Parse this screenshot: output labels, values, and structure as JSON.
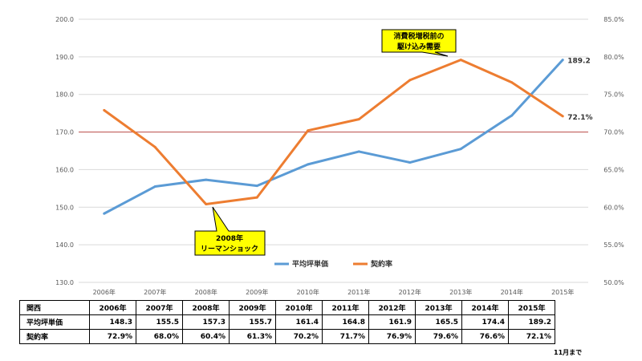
{
  "chart_data": {
    "type": "line",
    "categories": [
      "2006年",
      "2007年",
      "2008年",
      "2009年",
      "2010年",
      "2011年",
      "2012年",
      "2013年",
      "2014年",
      "2015年"
    ],
    "series": [
      {
        "name": "平均坪単価",
        "axis": "left",
        "color": "#5B9BD5",
        "values": [
          148.3,
          155.5,
          157.3,
          155.7,
          161.4,
          164.8,
          161.9,
          165.5,
          174.4,
          189.2
        ]
      },
      {
        "name": "契約率",
        "axis": "right",
        "color": "#ED7D31",
        "values": [
          72.9,
          68.0,
          60.4,
          61.3,
          70.2,
          71.7,
          76.9,
          79.6,
          76.6,
          72.1
        ]
      }
    ],
    "y_left": {
      "min": 130,
      "max": 200,
      "step": 10,
      "tick_labels": [
        "130.0",
        "140.0",
        "150.0",
        "160.0",
        "170.0",
        "180.0",
        "190.0",
        "200.0"
      ]
    },
    "y_right": {
      "min": 50,
      "max": 85,
      "step": 5,
      "tick_labels": [
        "50.0%",
        "55.0%",
        "60.0%",
        "65.0%",
        "70.0%",
        "75.0%",
        "80.0%",
        "85.0%"
      ]
    },
    "reference_line": {
      "axis": "right",
      "value": 70.0,
      "color": "#C0504D"
    },
    "end_labels": {
      "平均坪単価": "189.2",
      "契約率": "72.1%"
    },
    "grid": true,
    "legend_position": "bottom-center",
    "annotations": [
      {
        "text": [
          "消費税増税前の",
          "駆け込み需要"
        ],
        "points_to": "2013年"
      },
      {
        "text": [
          "2008年",
          "リーマンショック"
        ],
        "points_to": "2008年"
      }
    ]
  },
  "table": {
    "header_label": "関西",
    "years": [
      "2006年",
      "2007年",
      "2008年",
      "2009年",
      "2010年",
      "2011年",
      "2012年",
      "2013年",
      "2014年",
      "2015年"
    ],
    "rows": [
      {
        "label": "平均坪単価",
        "values": [
          "148.3",
          "155.5",
          "157.3",
          "155.7",
          "161.4",
          "164.8",
          "161.9",
          "165.5",
          "174.4",
          "189.2"
        ]
      },
      {
        "label": "契約率",
        "values": [
          "72.9%",
          "68.0%",
          "60.4%",
          "61.3%",
          "70.2%",
          "71.7%",
          "76.9%",
          "79.6%",
          "76.6%",
          "72.1%"
        ]
      }
    ]
  },
  "note": "11月まで"
}
